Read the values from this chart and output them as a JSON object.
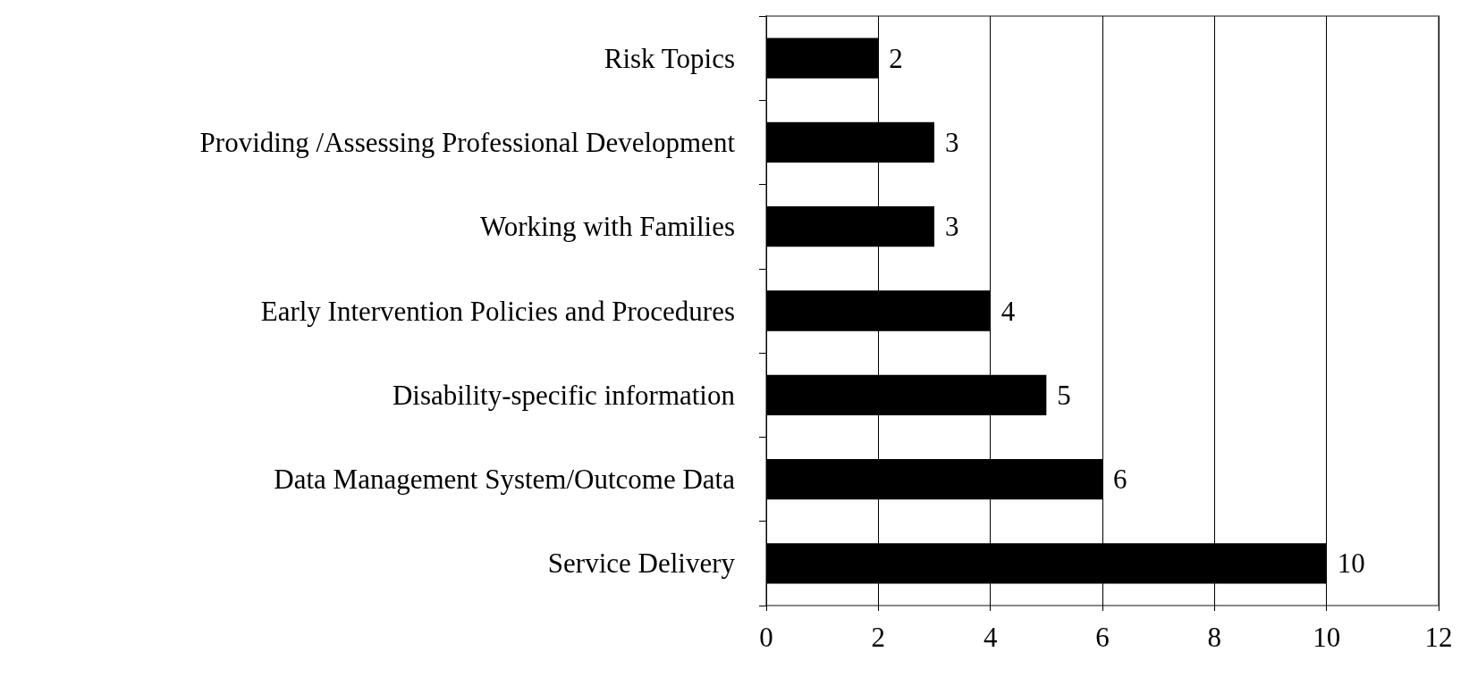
{
  "chart_data": {
    "type": "bar",
    "orientation": "horizontal",
    "categories": [
      "Risk Topics",
      "Providing /Assessing Professional Development",
      "Working with Families",
      "Early Intervention Policies and Procedures",
      "Disability-specific information",
      "Data Management System/Outcome Data",
      "Service Delivery"
    ],
    "values": [
      2,
      3,
      3,
      4,
      5,
      6,
      10
    ],
    "color": "#000000",
    "xlim": [
      0,
      12
    ],
    "xticks": [
      0,
      2,
      4,
      6,
      8,
      10,
      12
    ],
    "grid": "x",
    "data_labels": true
  }
}
